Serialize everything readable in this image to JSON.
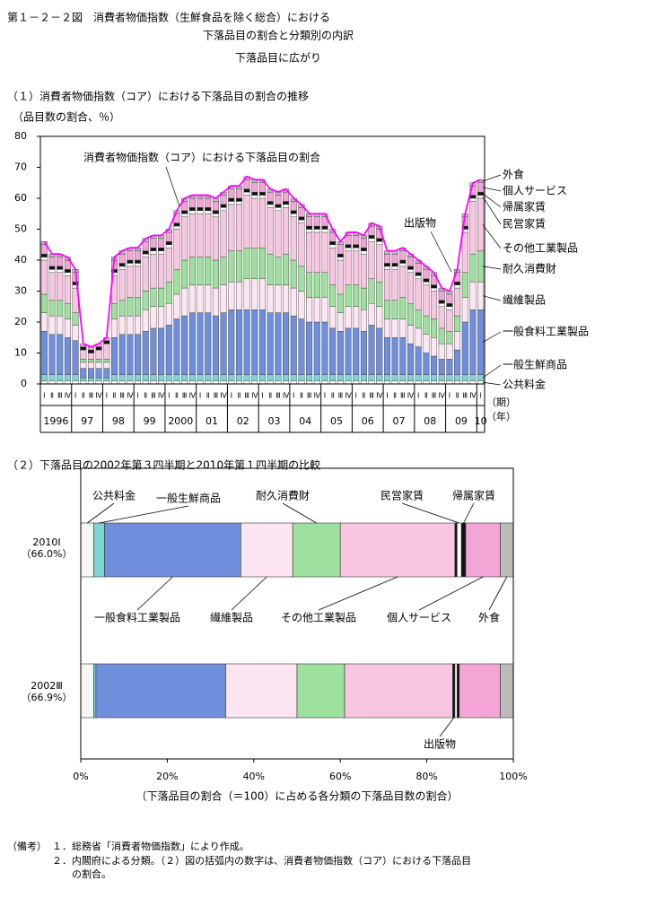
{
  "header": {
    "title": [
      "第１－２－２図　消費者物価指数（生鮮食品を除く総合）における",
      "下落品目の割合と分類別の内訳"
    ],
    "subtitle": "下落品目に広がり"
  },
  "chart_data": [
    {
      "type": "bar",
      "stacked": true,
      "title": "（１）消費者物価指数（コア）における下落品目の割合の推移",
      "y_label": "（品目数の割合、％）",
      "categories": [
        "Ⅰ",
        "Ⅱ",
        "Ⅲ",
        "Ⅳ",
        "Ⅰ",
        "Ⅱ",
        "Ⅲ",
        "Ⅳ",
        "Ⅰ",
        "Ⅱ",
        "Ⅲ",
        "Ⅳ",
        "Ⅰ",
        "Ⅱ",
        "Ⅲ",
        "Ⅳ",
        "Ⅰ",
        "Ⅱ",
        "Ⅲ",
        "Ⅳ",
        "Ⅰ",
        "Ⅱ",
        "Ⅲ",
        "Ⅳ",
        "Ⅰ",
        "Ⅱ",
        "Ⅲ",
        "Ⅳ",
        "Ⅰ",
        "Ⅱ",
        "Ⅲ",
        "Ⅳ",
        "Ⅰ",
        "Ⅱ",
        "Ⅲ",
        "Ⅳ",
        "Ⅰ",
        "Ⅱ",
        "Ⅲ",
        "Ⅳ",
        "Ⅰ",
        "Ⅱ",
        "Ⅲ",
        "Ⅳ",
        "Ⅰ",
        "Ⅱ",
        "Ⅲ",
        "Ⅳ",
        "Ⅰ",
        "Ⅱ",
        "Ⅲ",
        "Ⅳ",
        "Ⅰ",
        "Ⅱ",
        "Ⅲ",
        "Ⅳ",
        "Ⅰ"
      ],
      "x_groups": [
        "1996",
        "97",
        "98",
        "99",
        "2000",
        "01",
        "02",
        "03",
        "04",
        "05",
        "06",
        "07",
        "08",
        "09",
        "10"
      ],
      "x_units": [
        "（期）",
        "（年）"
      ],
      "ylim": [
        0,
        80
      ],
      "yticks": [
        0,
        10,
        20,
        30,
        40,
        50,
        60,
        70,
        80
      ],
      "series": [
        {
          "name": "公共料金",
          "color": "#ffffff",
          "values": [
            1,
            1,
            1,
            1,
            1,
            1,
            1,
            1,
            1,
            1,
            1,
            1,
            1,
            1,
            1,
            1,
            1,
            1,
            1,
            1,
            1,
            1,
            1,
            1,
            1,
            1,
            1,
            1,
            1,
            1,
            1,
            1,
            1,
            1,
            1,
            1,
            1,
            1,
            1,
            1,
            1,
            1,
            1,
            1,
            1,
            1,
            1,
            1,
            1,
            1,
            1,
            1,
            1,
            1,
            1,
            1,
            1
          ]
        },
        {
          "name": "一般生鮮商品",
          "color": "#7fd4d4",
          "values": [
            2,
            2,
            2,
            2,
            2,
            1,
            1,
            1,
            1,
            2,
            2,
            2,
            2,
            2,
            2,
            2,
            2,
            2,
            2,
            2,
            2,
            2,
            2,
            2,
            2,
            2,
            2,
            2,
            2,
            2,
            2,
            2,
            2,
            2,
            2,
            2,
            2,
            2,
            2,
            2,
            2,
            2,
            2,
            2,
            2,
            2,
            2,
            2,
            2,
            2,
            2,
            2,
            2,
            2,
            2,
            2,
            2
          ]
        },
        {
          "name": "一般食料工業製品",
          "color": "#6f8fdc",
          "values": [
            14,
            13,
            13,
            12,
            11,
            3,
            3,
            3,
            3,
            12,
            13,
            13,
            13,
            14,
            15,
            15,
            16,
            18,
            19,
            20,
            20,
            20,
            19,
            20,
            21,
            21,
            21,
            21,
            21,
            20,
            20,
            20,
            19,
            18,
            17,
            17,
            17,
            15,
            14,
            15,
            15,
            14,
            16,
            15,
            12,
            12,
            12,
            10,
            9,
            7,
            6,
            5,
            5,
            8,
            17,
            21,
            21
          ]
        },
        {
          "name": "繊維製品",
          "color": "#fde6f2",
          "values": [
            6,
            6,
            6,
            6,
            5,
            2,
            2,
            2,
            2,
            6,
            6,
            6,
            6,
            7,
            7,
            7,
            7,
            8,
            9,
            9,
            9,
            9,
            9,
            9,
            9,
            9,
            10,
            10,
            10,
            9,
            9,
            9,
            9,
            9,
            8,
            8,
            8,
            7,
            6,
            7,
            7,
            7,
            7,
            7,
            6,
            6,
            6,
            6,
            6,
            6,
            6,
            5,
            5,
            6,
            8,
            9,
            9
          ]
        },
        {
          "name": "耐久消費財",
          "color": "#9ee09e",
          "values": [
            6,
            5,
            5,
            5,
            4,
            1,
            1,
            1,
            1,
            5,
            5,
            6,
            6,
            6,
            6,
            6,
            7,
            8,
            9,
            9,
            9,
            9,
            9,
            9,
            10,
            10,
            10,
            10,
            10,
            10,
            9,
            10,
            9,
            8,
            8,
            8,
            8,
            7,
            6,
            7,
            7,
            7,
            8,
            8,
            6,
            6,
            7,
            7,
            6,
            6,
            6,
            5,
            4,
            5,
            8,
            9,
            10
          ]
        },
        {
          "name": "その他工業製品",
          "color": "#f9c6e2",
          "values": [
            11,
            9,
            9,
            9,
            8,
            3,
            2,
            3,
            5,
            9,
            10,
            10,
            10,
            11,
            11,
            11,
            11,
            13,
            14,
            14,
            14,
            14,
            14,
            15,
            15,
            15,
            17,
            16,
            16,
            15,
            15,
            15,
            14,
            14,
            13,
            13,
            13,
            12,
            11,
            11,
            11,
            11,
            12,
            12,
            10,
            10,
            10,
            10,
            10,
            10,
            9,
            7,
            7,
            9,
            13,
            17,
            17
          ]
        },
        {
          "name": "民営家賃",
          "color": "#ffffff",
          "values": [
            1,
            1,
            1,
            1,
            1,
            0,
            0,
            0,
            0,
            1,
            1,
            1,
            1,
            1,
            1,
            1,
            1,
            1,
            1,
            1,
            1,
            1,
            1,
            1,
            1,
            1,
            1,
            1,
            1,
            1,
            1,
            1,
            1,
            1,
            1,
            1,
            1,
            1,
            1,
            1,
            1,
            1,
            1,
            1,
            1,
            1,
            1,
            1,
            1,
            1,
            1,
            1,
            1,
            1,
            1,
            1,
            1
          ]
        },
        {
          "name": "帰属家賃",
          "color": "#111111",
          "values": [
            1,
            1,
            1,
            1,
            1,
            1,
            1,
            1,
            1,
            1,
            1,
            1,
            1,
            1,
            1,
            1,
            1,
            1,
            1,
            1,
            1,
            1,
            1,
            1,
            1,
            1,
            1,
            1,
            1,
            1,
            1,
            1,
            1,
            1,
            1,
            1,
            1,
            1,
            1,
            1,
            1,
            1,
            1,
            1,
            1,
            1,
            1,
            1,
            1,
            1,
            1,
            1,
            1,
            1,
            1,
            1,
            1
          ]
        },
        {
          "name": "個人サービス",
          "color": "#f3a6d6",
          "values": [
            3,
            3,
            3,
            3,
            3,
            1,
            1,
            1,
            1,
            3,
            3,
            3,
            3,
            3,
            3,
            3,
            3,
            3,
            3,
            3,
            3,
            3,
            3,
            3,
            3,
            3,
            3,
            3,
            3,
            3,
            3,
            3,
            3,
            3,
            3,
            3,
            3,
            3,
            3,
            3,
            3,
            3,
            3,
            3,
            3,
            3,
            3,
            3,
            3,
            3,
            3,
            3,
            3,
            3,
            3,
            3,
            3
          ]
        },
        {
          "name": "外食",
          "color": "#bbbbbb",
          "values": [
            1,
            1,
            1,
            1,
            1,
            0,
            0,
            0,
            0,
            1,
            1,
            1,
            1,
            1,
            1,
            1,
            1,
            1,
            1,
            1,
            1,
            1,
            1,
            1,
            1,
            1,
            1,
            1,
            1,
            1,
            1,
            1,
            1,
            1,
            1,
            1,
            1,
            1,
            1,
            1,
            1,
            1,
            1,
            1,
            1,
            1,
            1,
            1,
            1,
            1,
            1,
            1,
            1,
            1,
            1,
            1,
            1
          ]
        }
      ],
      "line": {
        "name": "消費者物価指数（コア）における下落品目の割合",
        "color": "#ff00ff",
        "values": [
          46,
          42,
          42,
          41,
          37,
          13,
          12,
          13,
          15,
          41,
          43,
          44,
          44,
          47,
          48,
          48,
          50,
          56,
          60,
          61,
          61,
          61,
          60,
          62,
          64,
          64,
          67,
          66,
          66,
          63,
          62,
          63,
          60,
          58,
          55,
          55,
          55,
          50,
          46,
          49,
          49,
          48,
          52,
          51,
          43,
          43,
          44,
          42,
          40,
          38,
          36,
          31,
          30,
          37,
          55,
          65,
          66
        ]
      },
      "annotations": [
        "出版物"
      ]
    },
    {
      "type": "barh",
      "stacked": true,
      "title": "（２）下落品目の2002年第３四半期と2010年第１四半期の比較",
      "x_label": "（下落品目の割合（＝100）に占める各分類の下落品目数の割合）",
      "categories": [
        "2010Ⅰ",
        "2002Ⅲ"
      ],
      "category_sublabels": [
        "（66.0%）",
        "（66.9%）"
      ],
      "xlim": [
        0,
        100
      ],
      "xticks": [
        {
          "value": 0,
          "label": "0%"
        },
        {
          "value": 20,
          "label": "20%"
        },
        {
          "value": 40,
          "label": "40%"
        },
        {
          "value": 60,
          "label": "60%"
        },
        {
          "value": 80,
          "label": "80%"
        },
        {
          "value": 100,
          "label": "100%"
        }
      ],
      "series": [
        {
          "name": "公共料金",
          "color": "#f4f8f0",
          "values": [
            3,
            3
          ]
        },
        {
          "name": "一般生鮮商品",
          "color": "#7fd4d4",
          "values": [
            2.5,
            0.5
          ]
        },
        {
          "name": "一般食料工業製品",
          "color": "#6f8fdc",
          "values": [
            31.5,
            30
          ]
        },
        {
          "name": "繊維製品",
          "color": "#fde6f2",
          "values": [
            12,
            16.5
          ]
        },
        {
          "name": "耐久消費財",
          "color": "#9ee09e",
          "values": [
            11,
            11
          ]
        },
        {
          "name": "その他工業製品",
          "color": "#f9c6e2",
          "values": [
            26.5,
            25
          ]
        },
        {
          "name": "出版物",
          "color": "#111111",
          "values": [
            0.5,
            0.5
          ]
        },
        {
          "name": "民営家賃",
          "color": "#ffffff",
          "values": [
            1,
            0.5
          ]
        },
        {
          "name": "帰属家賃",
          "color": "#111111",
          "values": [
            1,
            0.5
          ]
        },
        {
          "name": "個人サービス",
          "color": "#f3a6d6",
          "values": [
            8,
            9.5
          ]
        },
        {
          "name": "外食",
          "color": "#bbbbbb",
          "values": [
            3,
            3
          ]
        }
      ]
    }
  ],
  "notes": {
    "label": "（備考）",
    "items": [
      "１．総務省「消費者物価指数」により作成。",
      "２．内閣府による分類。（２）図の括弧内の数字は、消費者物価指数（コア）における下落品目",
      "の割合。"
    ]
  }
}
